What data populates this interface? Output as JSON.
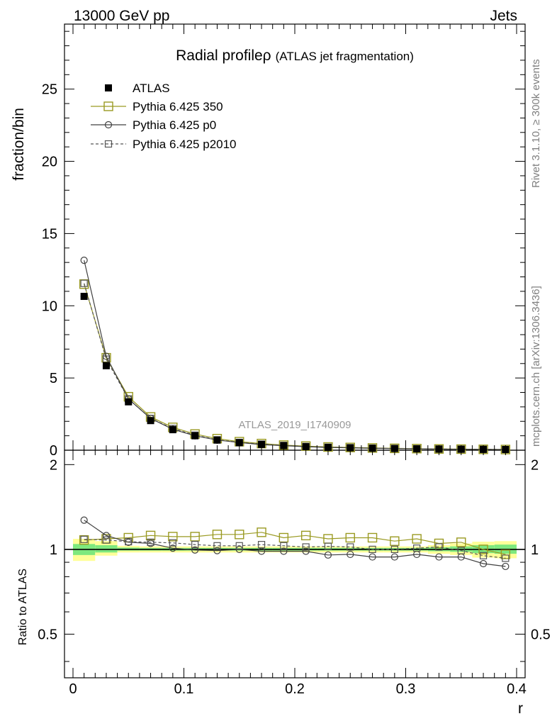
{
  "header": {
    "left": "13000 GeV pp",
    "right": "Jets"
  },
  "side_labels": {
    "rivet": "Rivet 3.1.10, ≥ 300k events",
    "mcplots": "mcplots.cern.ch [arXiv:1306.3436]"
  },
  "chart_data": [
    {
      "type": "scatter",
      "title": "Radial profile",
      "title_symbol": "ρ",
      "subtitle": "(ATLAS jet fragmentation)",
      "analysis_tag": "ATLAS_2019_I1740909",
      "xlabel": "r",
      "ylabel": "fraction/bin",
      "xlim": [
        0,
        0.4
      ],
      "ylim": [
        0,
        29.5
      ],
      "yticks": [
        0,
        5,
        10,
        15,
        20,
        25
      ],
      "xticks": [
        0,
        0.1,
        0.2,
        0.3,
        0.4
      ],
      "xtick_labels": [
        "0",
        "0.1",
        "0.2",
        "0.3",
        "0.4"
      ],
      "legend_position": "top-left",
      "x": [
        0.01,
        0.03,
        0.05,
        0.07,
        0.09,
        0.11,
        0.13,
        0.15,
        0.17,
        0.19,
        0.21,
        0.23,
        0.25,
        0.27,
        0.29,
        0.31,
        0.33,
        0.35,
        0.37,
        0.39
      ],
      "series": [
        {
          "name": "ATLAS",
          "color": "#000000",
          "marker": "filled-square",
          "line": "none",
          "values": [
            10.65,
            5.85,
            3.35,
            2.05,
            1.42,
            1.0,
            0.7,
            0.52,
            0.4,
            0.32,
            0.25,
            0.2,
            0.17,
            0.14,
            0.12,
            0.1,
            0.08,
            0.07,
            0.06,
            0.05
          ]
        },
        {
          "name": "Pythia 6.425 350",
          "color": "#9a9a22",
          "marker": "open-square",
          "line": "solid",
          "values": [
            11.5,
            6.4,
            3.7,
            2.3,
            1.58,
            1.12,
            0.8,
            0.59,
            0.46,
            0.355,
            0.285,
            0.222,
            0.19,
            0.155,
            0.128,
            0.11,
            0.085,
            0.074,
            0.061,
            0.048
          ]
        },
        {
          "name": "Pythia 6.425 p0",
          "color": "#404040",
          "marker": "open-circle",
          "line": "solid",
          "values": [
            13.15,
            6.5,
            3.55,
            2.2,
            1.45,
            1.0,
            0.7,
            0.53,
            0.39,
            0.315,
            0.245,
            0.19,
            0.163,
            0.132,
            0.113,
            0.097,
            0.075,
            0.066,
            0.054,
            0.043
          ]
        },
        {
          "name": "Pythia 6.425 p2010",
          "color": "#555555",
          "marker": "open-square-small",
          "line": "dashed",
          "values": [
            11.55,
            6.3,
            3.55,
            2.2,
            1.5,
            1.04,
            0.72,
            0.54,
            0.42,
            0.33,
            0.255,
            0.205,
            0.175,
            0.14,
            0.12,
            0.1,
            0.082,
            0.07,
            0.057,
            0.047
          ]
        }
      ]
    },
    {
      "type": "scatter",
      "ylabel": "Ratio to ATLAS",
      "xlabel": "r",
      "xlim": [
        0,
        0.4
      ],
      "ylim": [
        0.35,
        2.25
      ],
      "yticks": [
        0.5,
        1,
        2
      ],
      "ytick_labels": [
        "0.5",
        "1",
        "2"
      ],
      "xticks": [
        0,
        0.1,
        0.2,
        0.3,
        0.4
      ],
      "xtick_labels": [
        "0",
        "0.1",
        "0.2",
        "0.3",
        "0.4"
      ],
      "x": [
        0.01,
        0.03,
        0.05,
        0.07,
        0.09,
        0.11,
        0.13,
        0.15,
        0.17,
        0.19,
        0.21,
        0.23,
        0.25,
        0.27,
        0.29,
        0.31,
        0.33,
        0.35,
        0.37,
        0.39
      ],
      "bins": [
        [
          0.0,
          0.02
        ],
        [
          0.02,
          0.04
        ],
        [
          0.04,
          0.06
        ],
        [
          0.06,
          0.08
        ],
        [
          0.08,
          0.1
        ],
        [
          0.1,
          0.12
        ],
        [
          0.12,
          0.14
        ],
        [
          0.14,
          0.16
        ],
        [
          0.16,
          0.18
        ],
        [
          0.18,
          0.2
        ],
        [
          0.2,
          0.22
        ],
        [
          0.22,
          0.24
        ],
        [
          0.24,
          0.26
        ],
        [
          0.26,
          0.28
        ],
        [
          0.28,
          0.3
        ],
        [
          0.3,
          0.32
        ],
        [
          0.32,
          0.34
        ],
        [
          0.34,
          0.36
        ],
        [
          0.36,
          0.38
        ],
        [
          0.38,
          0.4
        ]
      ],
      "band_outer": {
        "color": "#ffff99",
        "lo": [
          0.91,
          0.95,
          0.975,
          0.975,
          0.975,
          0.975,
          0.975,
          0.975,
          0.975,
          0.975,
          0.975,
          0.975,
          0.975,
          0.975,
          0.975,
          0.975,
          0.965,
          0.955,
          0.935,
          0.93
        ],
        "hi": [
          1.09,
          1.07,
          1.03,
          1.025,
          1.025,
          1.025,
          1.025,
          1.025,
          1.025,
          1.025,
          1.025,
          1.025,
          1.025,
          1.025,
          1.025,
          1.025,
          1.035,
          1.05,
          1.065,
          1.07
        ]
      },
      "band_inner": {
        "color": "#7ee87e",
        "lo": [
          0.955,
          0.975,
          0.99,
          0.99,
          0.99,
          0.99,
          0.99,
          0.99,
          0.99,
          0.99,
          0.99,
          0.99,
          0.99,
          0.99,
          0.99,
          0.99,
          0.985,
          0.98,
          0.97,
          0.965
        ],
        "hi": [
          1.045,
          1.035,
          1.015,
          1.012,
          1.012,
          1.012,
          1.012,
          1.012,
          1.012,
          1.012,
          1.012,
          1.012,
          1.012,
          1.012,
          1.012,
          1.012,
          1.018,
          1.025,
          1.035,
          1.04
        ]
      },
      "reference_line": {
        "y": 1,
        "color": "#000000"
      },
      "series": [
        {
          "name": "Pythia 6.425 350",
          "color": "#9a9a22",
          "marker": "open-square",
          "line": "solid",
          "values": [
            1.08,
            1.09,
            1.1,
            1.12,
            1.11,
            1.11,
            1.13,
            1.13,
            1.15,
            1.1,
            1.12,
            1.09,
            1.1,
            1.1,
            1.07,
            1.09,
            1.05,
            1.06,
            1.0,
            0.96
          ]
        },
        {
          "name": "Pythia 6.425 p0",
          "color": "#404040",
          "marker": "open-circle",
          "line": "solid",
          "values": [
            1.27,
            1.12,
            1.06,
            1.05,
            1.01,
            0.995,
            0.99,
            1.0,
            0.985,
            0.985,
            0.985,
            0.955,
            0.96,
            0.94,
            0.94,
            0.96,
            0.94,
            0.94,
            0.89,
            0.87
          ]
        },
        {
          "name": "Pythia 6.425 p2010",
          "color": "#555555",
          "marker": "open-square-small",
          "line": "dashed",
          "values": [
            1.085,
            1.08,
            1.065,
            1.06,
            1.055,
            1.04,
            1.03,
            1.03,
            1.04,
            1.03,
            1.02,
            1.025,
            1.02,
            1.0,
            1.0,
            1.01,
            1.02,
            0.99,
            0.95,
            0.93
          ]
        }
      ]
    }
  ]
}
